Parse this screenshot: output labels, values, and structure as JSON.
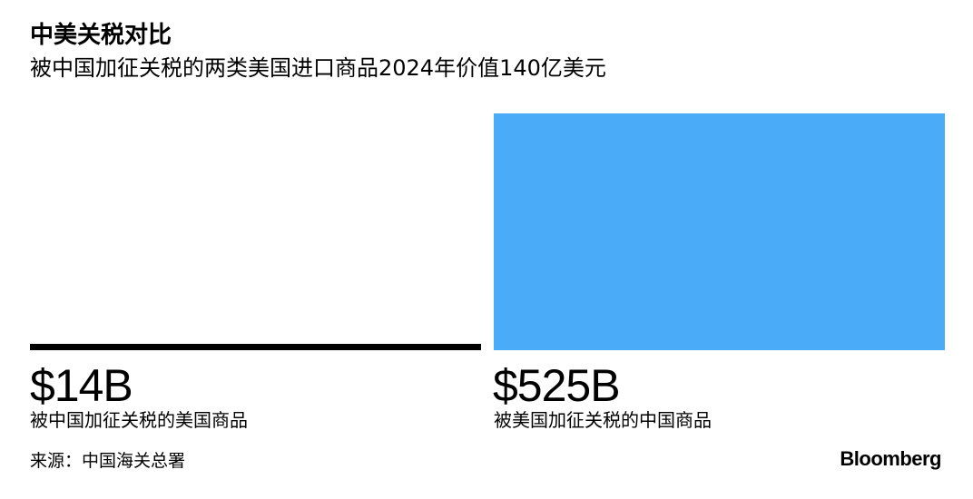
{
  "title": "中美关税对比",
  "subtitle": "被中国加征关税的两类美国进口商品2024年价值140亿美元",
  "chart_data": {
    "type": "bar",
    "categories": [
      "被中国加征关税的美国商品",
      "被美国加征关税的中国商品"
    ],
    "values": [
      14,
      525
    ],
    "value_labels": [
      "$14B",
      "$525B"
    ],
    "unit": "B USD",
    "colors": [
      "#000000",
      "#4aacf8"
    ]
  },
  "source": "来源：中国海关总署",
  "brand": "Bloomberg"
}
